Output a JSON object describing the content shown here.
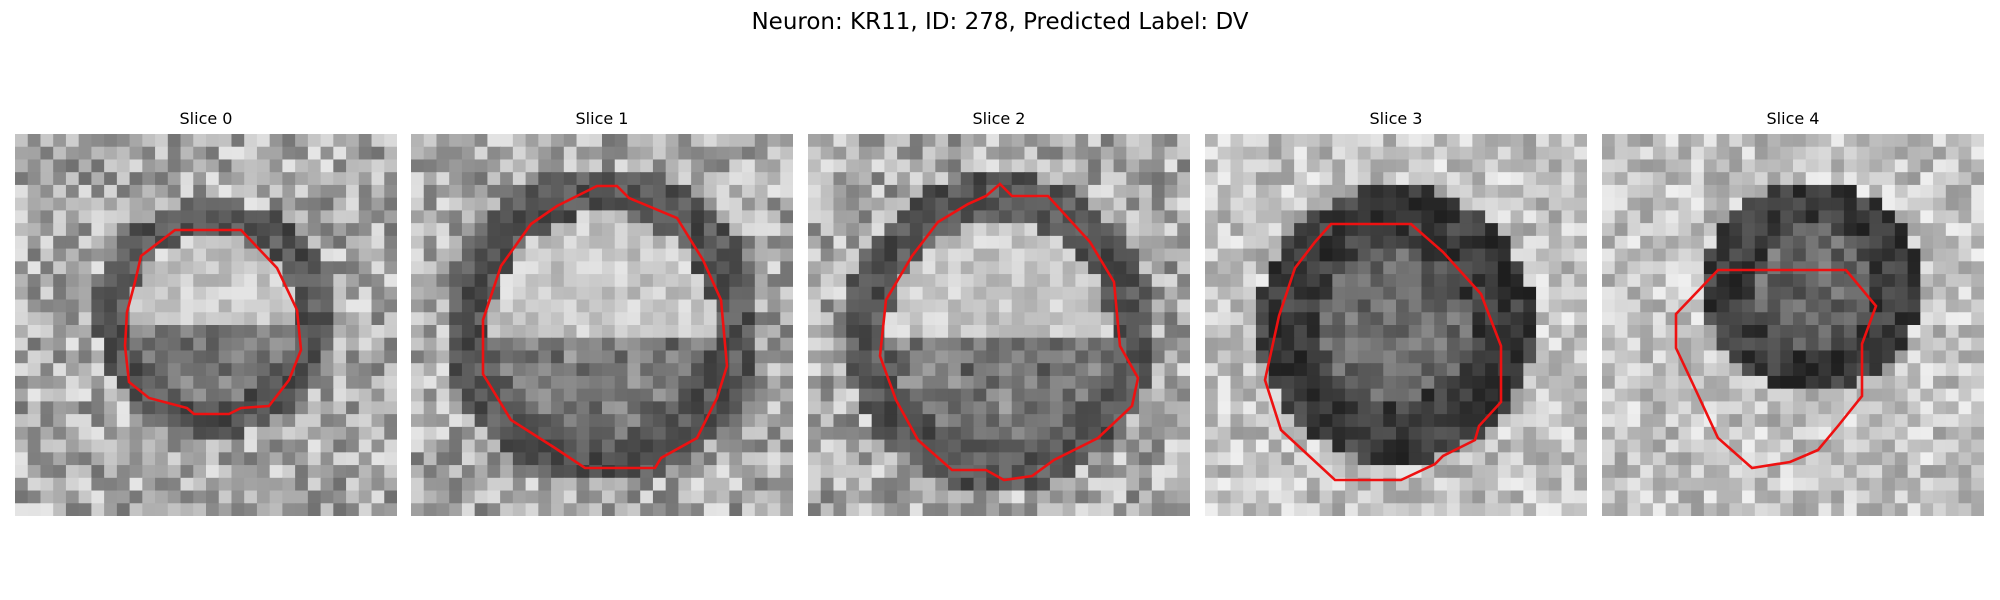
{
  "figure": {
    "title": "Neuron: KR11, ID: 278, Predicted Label: DV",
    "contour_color": "#ee1111",
    "colormap": "grayscale",
    "grid_size": 30
  },
  "slices": [
    {
      "title": "Slice 0"
    },
    {
      "title": "Slice 1"
    },
    {
      "title": "Slice 2"
    },
    {
      "title": "Slice 3"
    },
    {
      "title": "Slice 4"
    }
  ]
}
